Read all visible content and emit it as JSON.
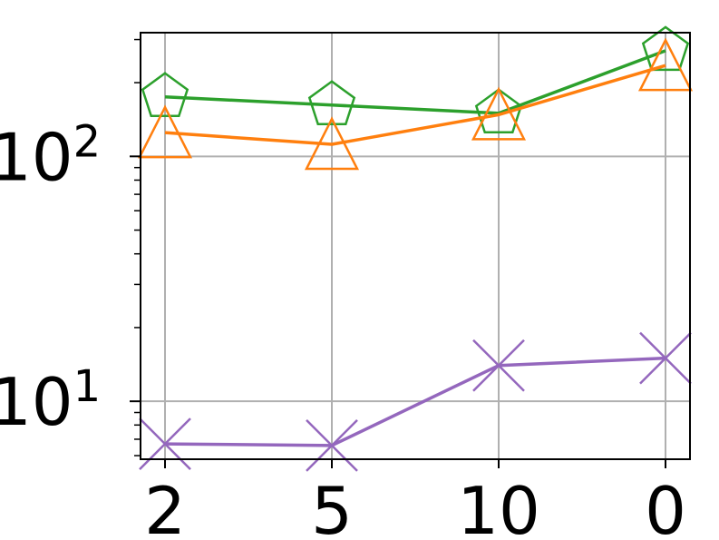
{
  "chart_data": {
    "type": "line",
    "title": "",
    "xlabel": "",
    "ylabel": "",
    "y_scale": "log",
    "ylim": [
      5.8,
      320
    ],
    "grid": true,
    "legend": "none",
    "categories": [
      "2",
      "5",
      "10",
      "0"
    ],
    "y_ticks": [
      {
        "value": 10,
        "base": "10",
        "exp": "1"
      },
      {
        "value": 100,
        "base": "10",
        "exp": "2"
      }
    ],
    "series": [
      {
        "color": "#2ca02c",
        "marker": "pentagon",
        "values": [
          175,
          162,
          150,
          270
        ]
      },
      {
        "color": "#ff7f0e",
        "marker": "triangle",
        "values": [
          125,
          112,
          148,
          235
        ]
      },
      {
        "color": "#9467bd",
        "marker": "x",
        "values": [
          6.7,
          6.6,
          14,
          15
        ]
      }
    ]
  }
}
